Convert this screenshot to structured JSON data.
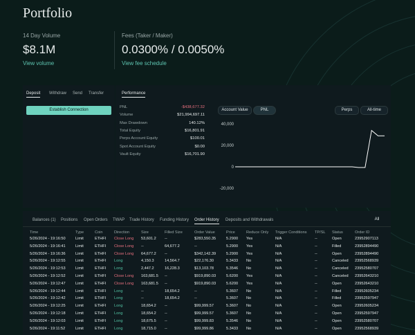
{
  "header": {
    "title": "Portfolio"
  },
  "stats": [
    {
      "label": "14 Day Volume",
      "value": "$8.1M",
      "link": "View volume"
    },
    {
      "label": "Fees (Taker / Maker)",
      "value": "0.0300% / 0.0050%",
      "link": "View fee schedule"
    }
  ],
  "transfer_panel": {
    "tabs": [
      "Deposit",
      "Withdraw",
      "Send",
      "Transfer"
    ],
    "button": "Establish Connection"
  },
  "performance": {
    "tab": "Performance",
    "rows": [
      {
        "label": "PNL",
        "value": "-$438,677.32"
      },
      {
        "label": "Volume",
        "value": "$21,994,697.11"
      },
      {
        "label": "Max Drawdown",
        "value": "140.12%"
      },
      {
        "label": "Total Equity",
        "value": "$16,801.91"
      },
      {
        "label": "Perps Account Equity",
        "value": "$100.01"
      },
      {
        "label": "Spot Account Equity",
        "value": "$0.00"
      },
      {
        "label": "Vault Equity",
        "value": "$16,701.90"
      }
    ],
    "controls": [
      "Account Value",
      "PNL",
      "Perps",
      "All-time"
    ]
  },
  "chart_data": {
    "type": "line",
    "color": "#ffffff",
    "values": [
      0,
      0,
      0,
      0,
      0,
      0,
      0,
      0,
      0,
      0,
      0,
      0,
      0,
      0,
      0,
      0,
      0,
      0,
      0,
      -600,
      -600,
      34000,
      29000,
      29000
    ],
    "ylim": [
      -31000,
      44000
    ],
    "yticks": [
      {
        "value": 40000,
        "label": "40,000"
      },
      {
        "value": 20000,
        "label": "20,000"
      },
      0,
      {
        "value": -20000,
        "label": "-20,000"
      }
    ],
    "grid": false
  },
  "orders": {
    "tabs": [
      "Balances (1)",
      "Positions",
      "Open Orders",
      "TWAP",
      "Trade History",
      "Funding History",
      "Order History",
      "Deposits and Withdrawals"
    ],
    "filter": "All",
    "columns": [
      "Time",
      "Type",
      "Coin",
      "Direction",
      "Size",
      "Filled Size",
      "Order Value",
      "Price",
      "Reduce Only",
      "Trigger Conditions",
      "TP/SL",
      "Status",
      "Order ID"
    ],
    "rows": [
      [
        "5/26/2024 - 19:16:50",
        "Limit",
        "ETHFI",
        "Close Long",
        "53,601.2",
        "--",
        "$283,550.35",
        "5.2900",
        "Yes",
        "N/A",
        "--",
        "Open",
        "23952907113"
      ],
      [
        "5/26/2024 - 19:16:41",
        "Limit",
        "ETHFI",
        "Close Long",
        "--",
        "64,677.2",
        "--",
        "5.2900",
        "Yes",
        "N/A",
        "--",
        "Filled",
        "23952894490"
      ],
      [
        "5/26/2024 - 19:16:36",
        "Limit",
        "ETHFI",
        "Close Long",
        "64,677.2",
        "--",
        "$342,142.39",
        "5.2900",
        "Yes",
        "N/A",
        "--",
        "Open",
        "23952894490"
      ],
      [
        "5/26/2024 - 19:12:55",
        "Limit",
        "ETHFI",
        "Long",
        "4,150.3",
        "14,564.7",
        "$22,176.30",
        "5.3433",
        "No",
        "N/A",
        "--",
        "Canceled",
        "23952568939"
      ],
      [
        "5/26/2024 - 19:12:53",
        "Limit",
        "ETHFI",
        "Long",
        "2,447.2",
        "16,228.3",
        "$13,103.78",
        "5.3546",
        "No",
        "N/A",
        "--",
        "Canceled",
        "23952580707"
      ],
      [
        "5/26/2024 - 19:12:52",
        "Limit",
        "ETHFI",
        "Close Long",
        "163,681.5",
        "--",
        "$919,890.03",
        "5.6200",
        "Yes",
        "N/A",
        "--",
        "Canceled",
        "23952643210"
      ],
      [
        "5/26/2024 - 19:12:47",
        "Limit",
        "ETHFI",
        "Close Long",
        "163,681.5",
        "--",
        "$919,890.03",
        "5.6200",
        "Yes",
        "N/A",
        "--",
        "Open",
        "23952643210"
      ],
      [
        "5/26/2024 - 19:12:44",
        "Limit",
        "ETHFI",
        "Long",
        "--",
        "18,654.2",
        "--",
        "5.3607",
        "No",
        "N/A",
        "--",
        "Filled",
        "23952605234"
      ],
      [
        "5/26/2024 - 19:12:42",
        "Limit",
        "ETHFI",
        "Long",
        "--",
        "18,654.2",
        "--",
        "5.3607",
        "No",
        "N/A",
        "--",
        "Filled",
        "23952597947"
      ],
      [
        "5/26/2024 - 19:12:25",
        "Limit",
        "ETHFI",
        "Long",
        "18,654.2",
        "--",
        "$99,999.57",
        "5.3607",
        "No",
        "N/A",
        "--",
        "Open",
        "23952605234"
      ],
      [
        "5/26/2024 - 19:12:18",
        "Limit",
        "ETHFI",
        "Long",
        "18,654.2",
        "--",
        "$99,999.57",
        "5.3607",
        "No",
        "N/A",
        "--",
        "Open",
        "23952597947"
      ],
      [
        "5/26/2024 - 19:12:03",
        "Limit",
        "ETHFI",
        "Long",
        "18,675.5",
        "--",
        "$99,999.83",
        "5.3546",
        "No",
        "N/A",
        "--",
        "Open",
        "23952580707"
      ],
      [
        "5/26/2024 - 19:11:52",
        "Limit",
        "ETHFI",
        "Long",
        "18,715.0",
        "--",
        "$99,999.86",
        "5.3433",
        "No",
        "N/A",
        "--",
        "Open",
        "23952568939"
      ]
    ]
  }
}
